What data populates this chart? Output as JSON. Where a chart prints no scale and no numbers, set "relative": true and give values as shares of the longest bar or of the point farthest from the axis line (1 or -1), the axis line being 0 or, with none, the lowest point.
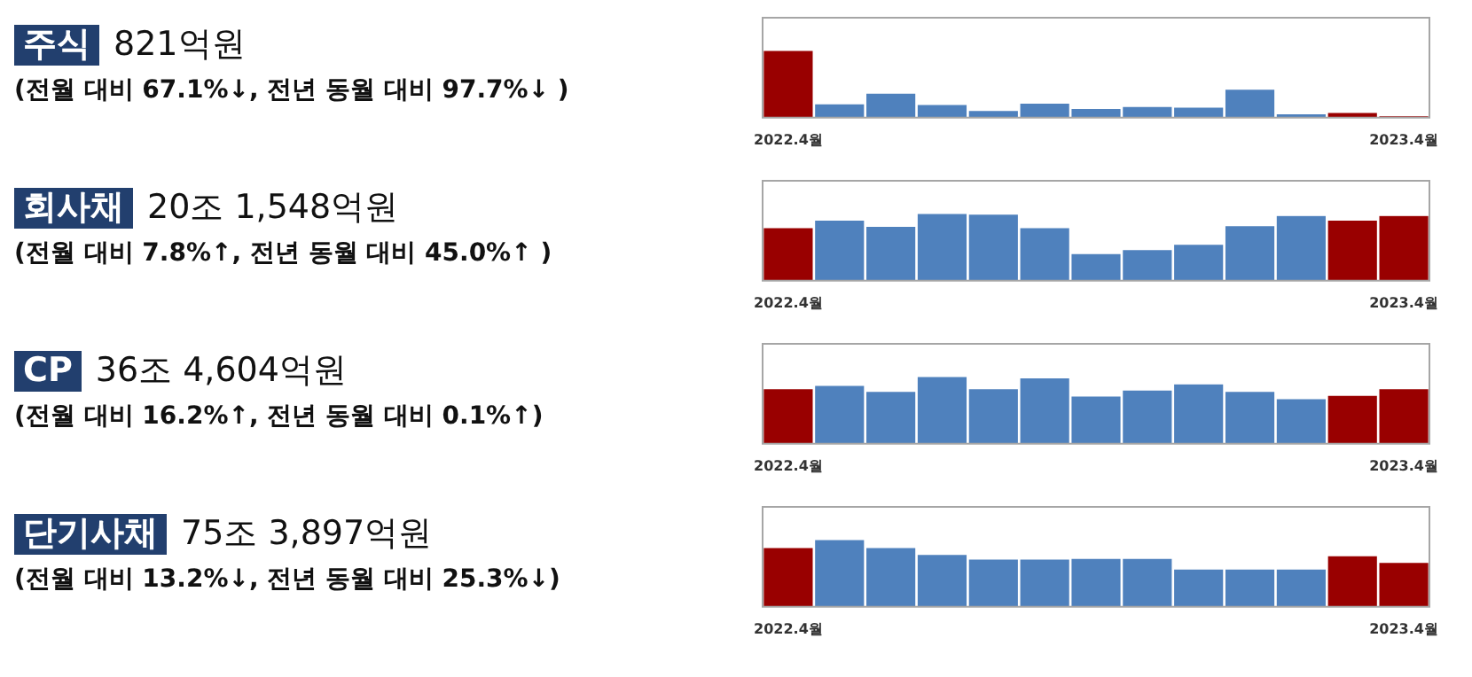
{
  "chart_data": [
    {
      "type": "bar",
      "annotations": [
        "주식",
        "821억원",
        "(전월 대비 67.1%↓, 전년 동월 대비 97.7%↓ )"
      ],
      "relative": true,
      "categories": [
        "2022.4월",
        null,
        null,
        null,
        null,
        null,
        null,
        null,
        null,
        null,
        null,
        null,
        "2023.4월"
      ],
      "values": [
        1,
        0.2,
        0.36,
        0.19,
        0.1,
        0.21,
        0.13,
        0.16,
        0.15,
        0.42,
        0.05,
        0.07,
        0.02
      ],
      "colors": [
        "#990000",
        "#4f81bd",
        "#4f81bd",
        "#4f81bd",
        "#4f81bd",
        "#4f81bd",
        "#4f81bd",
        "#4f81bd",
        "#4f81bd",
        "#4f81bd",
        "#4f81bd",
        "#990000",
        "#990000"
      ],
      "grid": false,
      "legend": false
    },
    {
      "type": "bar",
      "annotations": [
        "회사채",
        "20조 1,548억원",
        "(전월 대비 7.8%↑, 전년 동월 대비 45.0%↑ )"
      ],
      "relative": true,
      "categories": [
        "2022.4월",
        null,
        null,
        null,
        null,
        null,
        null,
        null,
        null,
        null,
        null,
        null,
        "2023.4월"
      ],
      "values": [
        0.79,
        0.9,
        0.81,
        1,
        0.99,
        0.79,
        0.4,
        0.46,
        0.54,
        0.82,
        0.97,
        0.9,
        0.97
      ],
      "colors": [
        "#990000",
        "#4f81bd",
        "#4f81bd",
        "#4f81bd",
        "#4f81bd",
        "#4f81bd",
        "#4f81bd",
        "#4f81bd",
        "#4f81bd",
        "#4f81bd",
        "#4f81bd",
        "#990000",
        "#990000"
      ],
      "grid": false,
      "legend": false
    },
    {
      "type": "bar",
      "annotations": [
        "CP",
        "36조 4,604억원",
        "(전월 대비 16.2%↑, 전년 동월 대비 0.1%↑)"
      ],
      "relative": true,
      "categories": [
        "2022.4월",
        null,
        null,
        null,
        null,
        null,
        null,
        null,
        null,
        null,
        null,
        null,
        "2023.4월"
      ],
      "values": [
        0.82,
        0.87,
        0.78,
        1,
        0.82,
        0.98,
        0.71,
        0.8,
        0.89,
        0.78,
        0.67,
        0.72,
        0.82
      ],
      "colors": [
        "#990000",
        "#4f81bd",
        "#4f81bd",
        "#4f81bd",
        "#4f81bd",
        "#4f81bd",
        "#4f81bd",
        "#4f81bd",
        "#4f81bd",
        "#4f81bd",
        "#4f81bd",
        "#990000",
        "#990000"
      ],
      "grid": false,
      "legend": false
    },
    {
      "type": "bar",
      "annotations": [
        "단기사채",
        "75조 3,897억원",
        "(전월 대비 13.2%↓, 전년 동월 대비 25.3%↓)"
      ],
      "relative": true,
      "categories": [
        "2022.4월",
        null,
        null,
        null,
        null,
        null,
        null,
        null,
        null,
        null,
        null,
        null,
        "2023.4월"
      ],
      "values": [
        0.88,
        1,
        0.88,
        0.78,
        0.71,
        0.71,
        0.72,
        0.72,
        0.56,
        0.56,
        0.56,
        0.76,
        0.66
      ],
      "colors": [
        "#990000",
        "#4f81bd",
        "#4f81bd",
        "#4f81bd",
        "#4f81bd",
        "#4f81bd",
        "#4f81bd",
        "#4f81bd",
        "#4f81bd",
        "#4f81bd",
        "#4f81bd",
        "#990000",
        "#990000"
      ],
      "grid": false,
      "legend": false
    }
  ]
}
